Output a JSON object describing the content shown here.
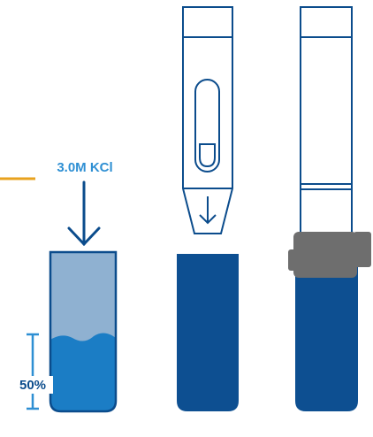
{
  "labels": {
    "solution": "3.0M KCl",
    "fill_level": "50%"
  }
}
